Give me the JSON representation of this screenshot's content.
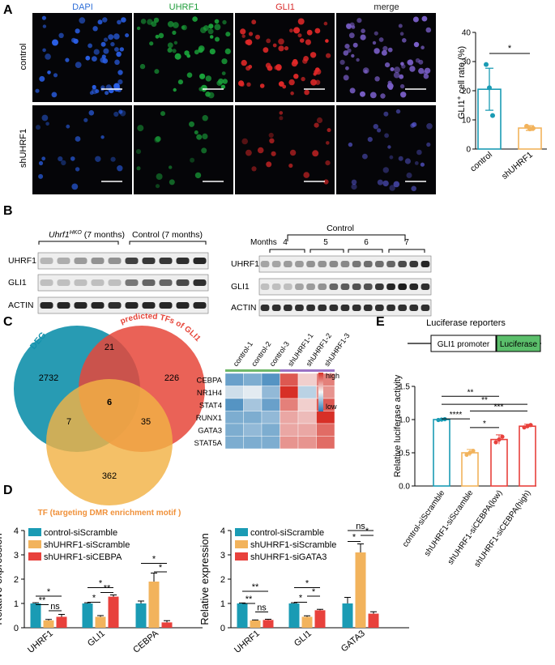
{
  "panel_letters": {
    "a": "A",
    "b": "B",
    "c": "C",
    "d": "D",
    "e": "E"
  },
  "panelA": {
    "columns": [
      "DAPI",
      "UHRF1",
      "GLI1",
      "merge"
    ],
    "column_colors": [
      "#2f6fd8",
      "#1f9c3a",
      "#d92b2b",
      "#222222"
    ],
    "rows": [
      "control",
      "shUHRF1"
    ],
    "chart": {
      "type": "bar",
      "categories": [
        "control",
        "shUHRF1"
      ],
      "values": [
        20.5,
        7.2
      ],
      "errors": [
        7.2,
        0.8
      ],
      "points": [
        [
          29,
          21,
          11.5
        ],
        [
          7.8,
          6.9,
          7.1
        ]
      ],
      "ylim": [
        0,
        40
      ],
      "yticks": [
        0,
        10,
        20,
        30,
        40
      ],
      "ylabel_main": "GLI1",
      "ylabel_sup": "+",
      "ylabel_rest": " cell rate (%)",
      "sig": "*",
      "colors": [
        "#1a9bb4",
        "#f2b35c"
      ]
    }
  },
  "panelB": {
    "left_group_italic": "Uhrf1",
    "left_group_sup": "HKO",
    "left_group_rest": " (7 months)",
    "right_group_left": "Control (7 months)",
    "rows_left": [
      "UHRF1",
      "GLI1",
      "ACTIN"
    ],
    "right_title": "Control",
    "months_label": "Months",
    "months": [
      "4",
      "5",
      "6",
      "7"
    ],
    "rows_right": [
      "UHRF1",
      "GLI1",
      "ACTIN"
    ]
  },
  "panelC": {
    "circles": {
      "deg": "DEG",
      "predicted": "predicted TFs of GLI1",
      "tf": "TF (targeting DMR enrichment motif )"
    },
    "numbers": {
      "deg_only": "2732",
      "deg_pred": "21",
      "pred_only": "226",
      "center": "6",
      "deg_tf": "7",
      "pred_tf": "35",
      "tf_only": "362"
    },
    "heatmap": {
      "columns": [
        "control-1",
        "control-2",
        "control-3",
        "shUHRF1-1",
        "shUHRF1-2",
        "shUHRF1-3"
      ],
      "rows": [
        "CEBPA",
        "NR1H4",
        "STAT4",
        "RUNX1",
        "GATA3",
        "STAT5A"
      ],
      "values": [
        [
          -0.7,
          -0.6,
          -0.8,
          0.8,
          0.2,
          0.6
        ],
        [
          -0.2,
          -0.1,
          -0.5,
          1.0,
          -0.3,
          0.5
        ],
        [
          -0.8,
          -0.4,
          -0.7,
          0.6,
          0.2,
          0.8
        ],
        [
          -0.6,
          -0.6,
          -0.5,
          0.4,
          0.3,
          1.0
        ],
        [
          -0.6,
          -0.5,
          -0.6,
          0.4,
          0.4,
          0.7
        ],
        [
          -0.6,
          -0.6,
          -0.6,
          0.5,
          0.5,
          0.7
        ]
      ],
      "legend_high": "high",
      "legend_low": "low"
    }
  },
  "panelD": {
    "ylabel": "Relative expression",
    "yticks": [
      "0",
      "1",
      "2",
      "3",
      "4"
    ],
    "left": {
      "legend": [
        "control-siScramble",
        "shUHRF1-siScramble",
        "shUHRF1-siCEBPA"
      ],
      "categories": [
        "UHRF1",
        "GLI1",
        "CEBPA"
      ],
      "series": [
        {
          "name": "control-siScramble",
          "values": [
            1.0,
            1.0,
            1.0
          ],
          "errors": [
            0.03,
            0.03,
            0.1
          ]
        },
        {
          "name": "shUHRF1-siScramble",
          "values": [
            0.3,
            0.45,
            1.9
          ],
          "errors": [
            0.04,
            0.05,
            0.35
          ]
        },
        {
          "name": "shUHRF1-siCEBPA",
          "values": [
            0.45,
            1.28,
            0.22
          ],
          "errors": [
            0.1,
            0.07,
            0.07
          ]
        }
      ],
      "sig": {
        "a": "*",
        "b": "**",
        "c": "ns",
        "d": "*",
        "e": "*",
        "f": "**",
        "g": "*",
        "h": "*"
      }
    },
    "right": {
      "legend": [
        "control-siScramble",
        "shUHRF1-siScramble",
        "shUHRF1-siGATA3"
      ],
      "categories": [
        "UHRF1",
        "GLI1",
        "GATA3"
      ],
      "series": [
        {
          "name": "control-siScramble",
          "values": [
            1.0,
            1.0,
            1.0
          ],
          "errors": [
            0.02,
            0.03,
            0.25
          ]
        },
        {
          "name": "shUHRF1-siScramble",
          "values": [
            0.3,
            0.45,
            3.1
          ],
          "errors": [
            0.02,
            0.04,
            0.35
          ]
        },
        {
          "name": "shUHRF1-siGATA3",
          "values": [
            0.32,
            0.72,
            0.58
          ],
          "errors": [
            0.03,
            0.04,
            0.08
          ]
        }
      ],
      "sig": {
        "a": "**",
        "b": "**",
        "c": "ns",
        "d": "*",
        "e": "*",
        "f": "*",
        "g": "ns",
        "h": "*",
        "i": "*"
      }
    },
    "colors": [
      "#1a9bb4",
      "#f2b35c",
      "#e8413c"
    ]
  },
  "panelE": {
    "title": "Luciferase reporters",
    "promoter": "GLI1 promoter",
    "luciferase": "Luciferase",
    "ylabel": "Relative luciferase activity",
    "yticks": [
      "0.0",
      "0.5",
      "1.0",
      "1.5"
    ],
    "chart": {
      "type": "bar",
      "categories": [
        "control-siScramble",
        "shUHRF1-siScramble",
        "shUHRF1-siCEBPA(low)",
        "shUHRF1-siCEBPA(high)"
      ],
      "values": [
        1.0,
        0.5,
        0.7,
        0.9
      ],
      "errors": [
        0.01,
        0.05,
        0.07,
        0.03
      ],
      "ylim": [
        0,
        1.5
      ],
      "colors": [
        "#1a9bb4",
        "#f2b35c",
        "#e8413c",
        "#e8413c"
      ]
    },
    "sig": {
      "a": "**",
      "b": "**",
      "c": "***",
      "d": "****",
      "e": "*"
    }
  }
}
